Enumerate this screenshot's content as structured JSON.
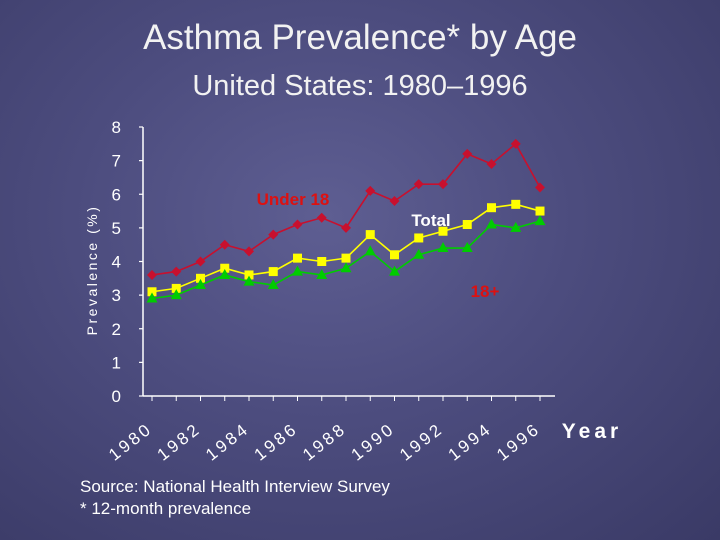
{
  "title": "Asthma Prevalence* by Age",
  "subtitle": "United States: 1980–1996",
  "source": {
    "line1": "Source:  National Health Interview Survey",
    "line2": "* 12-month prevalence"
  },
  "colors": {
    "under18": "#c8102e",
    "total": "#ffff00",
    "adult": "#00cc00",
    "axis": "#ffffff",
    "label_red": "#dd1111"
  },
  "chart_data": {
    "type": "line",
    "title": "Asthma Prevalence* by Age",
    "subtitle": "United States: 1980–1996",
    "xlabel": "Year",
    "ylabel": "Prevalence (%)",
    "ylim": [
      0,
      8
    ],
    "yticks": [
      0,
      1,
      2,
      3,
      4,
      5,
      6,
      7,
      8
    ],
    "x": [
      1980,
      1981,
      1982,
      1983,
      1984,
      1985,
      1986,
      1987,
      1988,
      1989,
      1990,
      1991,
      1992,
      1993,
      1994,
      1995,
      1996
    ],
    "xtick_labels": [
      "1980",
      "1982",
      "1984",
      "1986",
      "1988",
      "1990",
      "1992",
      "1994",
      "1996"
    ],
    "series": [
      {
        "name": "Under 18",
        "color": "#c8102e",
        "marker": "diamond",
        "values": [
          3.6,
          3.7,
          4.0,
          4.5,
          4.3,
          4.8,
          5.1,
          5.3,
          5.0,
          6.1,
          5.8,
          6.3,
          6.3,
          7.2,
          6.9,
          7.5,
          6.2
        ]
      },
      {
        "name": "Total",
        "color": "#ffff00",
        "marker": "square",
        "values": [
          3.1,
          3.2,
          3.5,
          3.8,
          3.6,
          3.7,
          4.1,
          4.0,
          4.1,
          4.8,
          4.2,
          4.7,
          4.9,
          5.1,
          5.6,
          5.7,
          5.5
        ]
      },
      {
        "name": "18+",
        "color": "#00cc00",
        "marker": "triangle",
        "values": [
          2.9,
          3.0,
          3.3,
          3.6,
          3.4,
          3.3,
          3.7,
          3.6,
          3.8,
          4.3,
          3.7,
          4.2,
          4.4,
          4.4,
          5.1,
          5.0,
          5.2
        ]
      }
    ]
  }
}
